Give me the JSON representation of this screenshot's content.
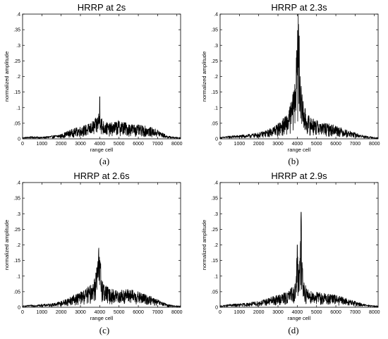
{
  "chart_data": [
    {
      "type": "line",
      "title": "HRRP at 2s",
      "xlabel": "range cell",
      "ylabel": "normalized amplitude",
      "caption": "(a)",
      "xlim": [
        0,
        8192
      ],
      "ylim": [
        0,
        0.4
      ],
      "xticks": [
        0,
        1000,
        2000,
        3000,
        4000,
        5000,
        6000,
        7000,
        8000
      ],
      "yticks": [
        0,
        0.05,
        0.1,
        0.15,
        0.2,
        0.25,
        0.3,
        0.35,
        0.4
      ],
      "grid": false,
      "series": [
        {
          "x": [
            0,
            500,
            1000,
            1500,
            2000,
            2500,
            3000,
            3500,
            3850,
            3950,
            4000,
            4050,
            4150,
            4500,
            5000,
            5500,
            6000,
            6500,
            7000,
            7500,
            8000,
            8192
          ],
          "y": [
            0.005,
            0.008,
            0.006,
            0.01,
            0.015,
            0.03,
            0.04,
            0.05,
            0.07,
            0.09,
            0.135,
            0.08,
            0.06,
            0.05,
            0.06,
            0.05,
            0.045,
            0.04,
            0.03,
            0.01,
            0.005,
            0.005
          ]
        }
      ]
    },
    {
      "type": "line",
      "title": "HRRP at 2.3s",
      "xlabel": "range cell",
      "ylabel": "normalized amplitude",
      "caption": "(b)",
      "xlim": [
        0,
        8192
      ],
      "ylim": [
        0,
        0.4
      ],
      "xticks": [
        0,
        1000,
        2000,
        3000,
        4000,
        5000,
        6000,
        7000,
        8000
      ],
      "yticks": [
        0,
        0.05,
        0.1,
        0.15,
        0.2,
        0.25,
        0.3,
        0.35,
        0.4
      ],
      "grid": false,
      "series": [
        {
          "x": [
            0,
            500,
            1000,
            1500,
            2000,
            2500,
            3000,
            3500,
            3800,
            3950,
            4050,
            4100,
            4150,
            4300,
            4500,
            5000,
            5500,
            6000,
            6500,
            7000,
            7500,
            8000,
            8192
          ],
          "y": [
            0.005,
            0.01,
            0.012,
            0.015,
            0.02,
            0.03,
            0.05,
            0.08,
            0.15,
            0.26,
            0.4,
            0.33,
            0.2,
            0.12,
            0.08,
            0.06,
            0.05,
            0.045,
            0.03,
            0.02,
            0.01,
            0.005,
            0.005
          ]
        }
      ]
    },
    {
      "type": "line",
      "title": "HRRP at 2.6s",
      "xlabel": "range cell",
      "ylabel": "normalized amplitude",
      "caption": "(c)",
      "xlim": [
        0,
        8192
      ],
      "ylim": [
        0,
        0.4
      ],
      "xticks": [
        0,
        1000,
        2000,
        3000,
        4000,
        5000,
        6000,
        7000,
        8000
      ],
      "yticks": [
        0,
        0.05,
        0.1,
        0.15,
        0.2,
        0.25,
        0.3,
        0.35,
        0.4
      ],
      "grid": false,
      "series": [
        {
          "x": [
            0,
            500,
            1000,
            1500,
            2000,
            2500,
            3000,
            3500,
            3800,
            3950,
            4050,
            4200,
            4500,
            5000,
            5500,
            6000,
            6500,
            7000,
            7500,
            8000,
            8192
          ],
          "y": [
            0.005,
            0.008,
            0.01,
            0.012,
            0.02,
            0.035,
            0.05,
            0.07,
            0.11,
            0.19,
            0.14,
            0.08,
            0.06,
            0.055,
            0.06,
            0.05,
            0.04,
            0.025,
            0.01,
            0.005,
            0.005
          ]
        }
      ]
    },
    {
      "type": "line",
      "title": "HRRP at 2.9s",
      "xlabel": "range cell",
      "ylabel": "normalized amplitude",
      "caption": "(d)",
      "xlim": [
        0,
        8192
      ],
      "ylim": [
        0,
        0.4
      ],
      "xticks": [
        0,
        1000,
        2000,
        3000,
        4000,
        5000,
        6000,
        7000,
        8000
      ],
      "yticks": [
        0,
        0.05,
        0.1,
        0.15,
        0.2,
        0.25,
        0.3,
        0.35,
        0.4
      ],
      "grid": false,
      "series": [
        {
          "x": [
            0,
            500,
            1000,
            1500,
            2000,
            2500,
            3000,
            3500,
            3900,
            4000,
            4100,
            4200,
            4300,
            4500,
            5000,
            5500,
            6000,
            6500,
            7000,
            7500,
            8000,
            8192
          ],
          "y": [
            0.005,
            0.01,
            0.012,
            0.015,
            0.02,
            0.03,
            0.04,
            0.05,
            0.08,
            0.2,
            0.12,
            0.305,
            0.1,
            0.06,
            0.05,
            0.045,
            0.04,
            0.03,
            0.02,
            0.01,
            0.005,
            0.005
          ]
        }
      ]
    }
  ]
}
